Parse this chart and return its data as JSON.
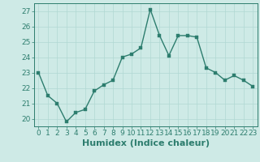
{
  "x": [
    0,
    1,
    2,
    3,
    4,
    5,
    6,
    7,
    8,
    9,
    10,
    11,
    12,
    13,
    14,
    15,
    16,
    17,
    18,
    19,
    20,
    21,
    22,
    23
  ],
  "y": [
    23.0,
    21.5,
    21.0,
    19.8,
    20.4,
    20.6,
    21.8,
    22.2,
    22.5,
    24.0,
    24.2,
    24.6,
    27.1,
    25.4,
    24.1,
    25.4,
    25.4,
    25.3,
    23.3,
    23.0,
    22.5,
    22.8,
    22.5,
    22.1
  ],
  "line_color": "#2d7d6e",
  "marker_color": "#2d7d6e",
  "bg_color": "#ceeae6",
  "grid_color": "#b0d8d3",
  "xlabel": "Humidex (Indice chaleur)",
  "xlim": [
    -0.5,
    23.5
  ],
  "ylim": [
    19.5,
    27.5
  ],
  "yticks": [
    20,
    21,
    22,
    23,
    24,
    25,
    26,
    27
  ],
  "xticks": [
    0,
    1,
    2,
    3,
    4,
    5,
    6,
    7,
    8,
    9,
    10,
    11,
    12,
    13,
    14,
    15,
    16,
    17,
    18,
    19,
    20,
    21,
    22,
    23
  ],
  "tick_color": "#2d7d6e",
  "xlabel_color": "#2d7d6e",
  "xlabel_fontsize": 8,
  "tick_fontsize": 6.5,
  "linewidth": 1.0,
  "markersize": 2.5
}
